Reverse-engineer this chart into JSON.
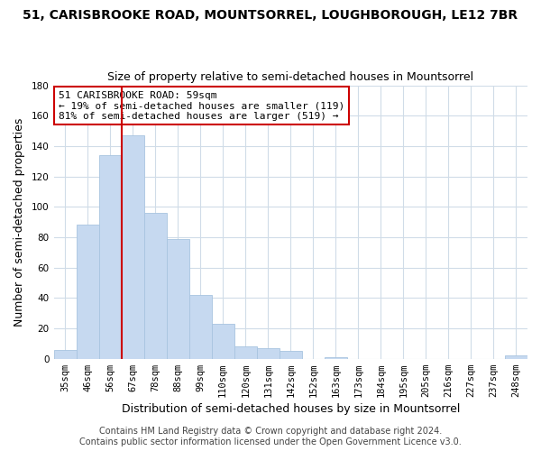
{
  "title": "51, CARISBROOKE ROAD, MOUNTSORREL, LOUGHBOROUGH, LE12 7BR",
  "subtitle": "Size of property relative to semi-detached houses in Mountsorrel",
  "xlabel": "Distribution of semi-detached houses by size in Mountsorrel",
  "ylabel": "Number of semi-detached properties",
  "categories": [
    "35sqm",
    "46sqm",
    "56sqm",
    "67sqm",
    "78sqm",
    "88sqm",
    "99sqm",
    "110sqm",
    "120sqm",
    "131sqm",
    "142sqm",
    "152sqm",
    "163sqm",
    "173sqm",
    "184sqm",
    "195sqm",
    "205sqm",
    "216sqm",
    "227sqm",
    "237sqm",
    "248sqm"
  ],
  "values": [
    6,
    88,
    134,
    147,
    96,
    79,
    42,
    23,
    8,
    7,
    5,
    0,
    1,
    0,
    0,
    0,
    0,
    0,
    0,
    0,
    2
  ],
  "bar_color": "#c6d9f0",
  "bar_edge_color": "#a8c4e0",
  "reference_line_color": "#cc0000",
  "annotation_text_line1": "51 CARISBROOKE ROAD: 59sqm",
  "annotation_text_line2": "← 19% of semi-detached houses are smaller (119)",
  "annotation_text_line3": "81% of semi-detached houses are larger (519) →",
  "annotation_box_color": "#ffffff",
  "annotation_box_edge_color": "#cc0000",
  "ylim": [
    0,
    180
  ],
  "yticks": [
    0,
    20,
    40,
    60,
    80,
    100,
    120,
    140,
    160,
    180
  ],
  "footer_line1": "Contains HM Land Registry data © Crown copyright and database right 2024.",
  "footer_line2": "Contains public sector information licensed under the Open Government Licence v3.0.",
  "background_color": "#ffffff",
  "grid_color": "#d0dce8",
  "title_fontsize": 10,
  "subtitle_fontsize": 9,
  "axis_label_fontsize": 9,
  "tick_fontsize": 7.5,
  "footer_fontsize": 7,
  "annotation_fontsize": 8
}
